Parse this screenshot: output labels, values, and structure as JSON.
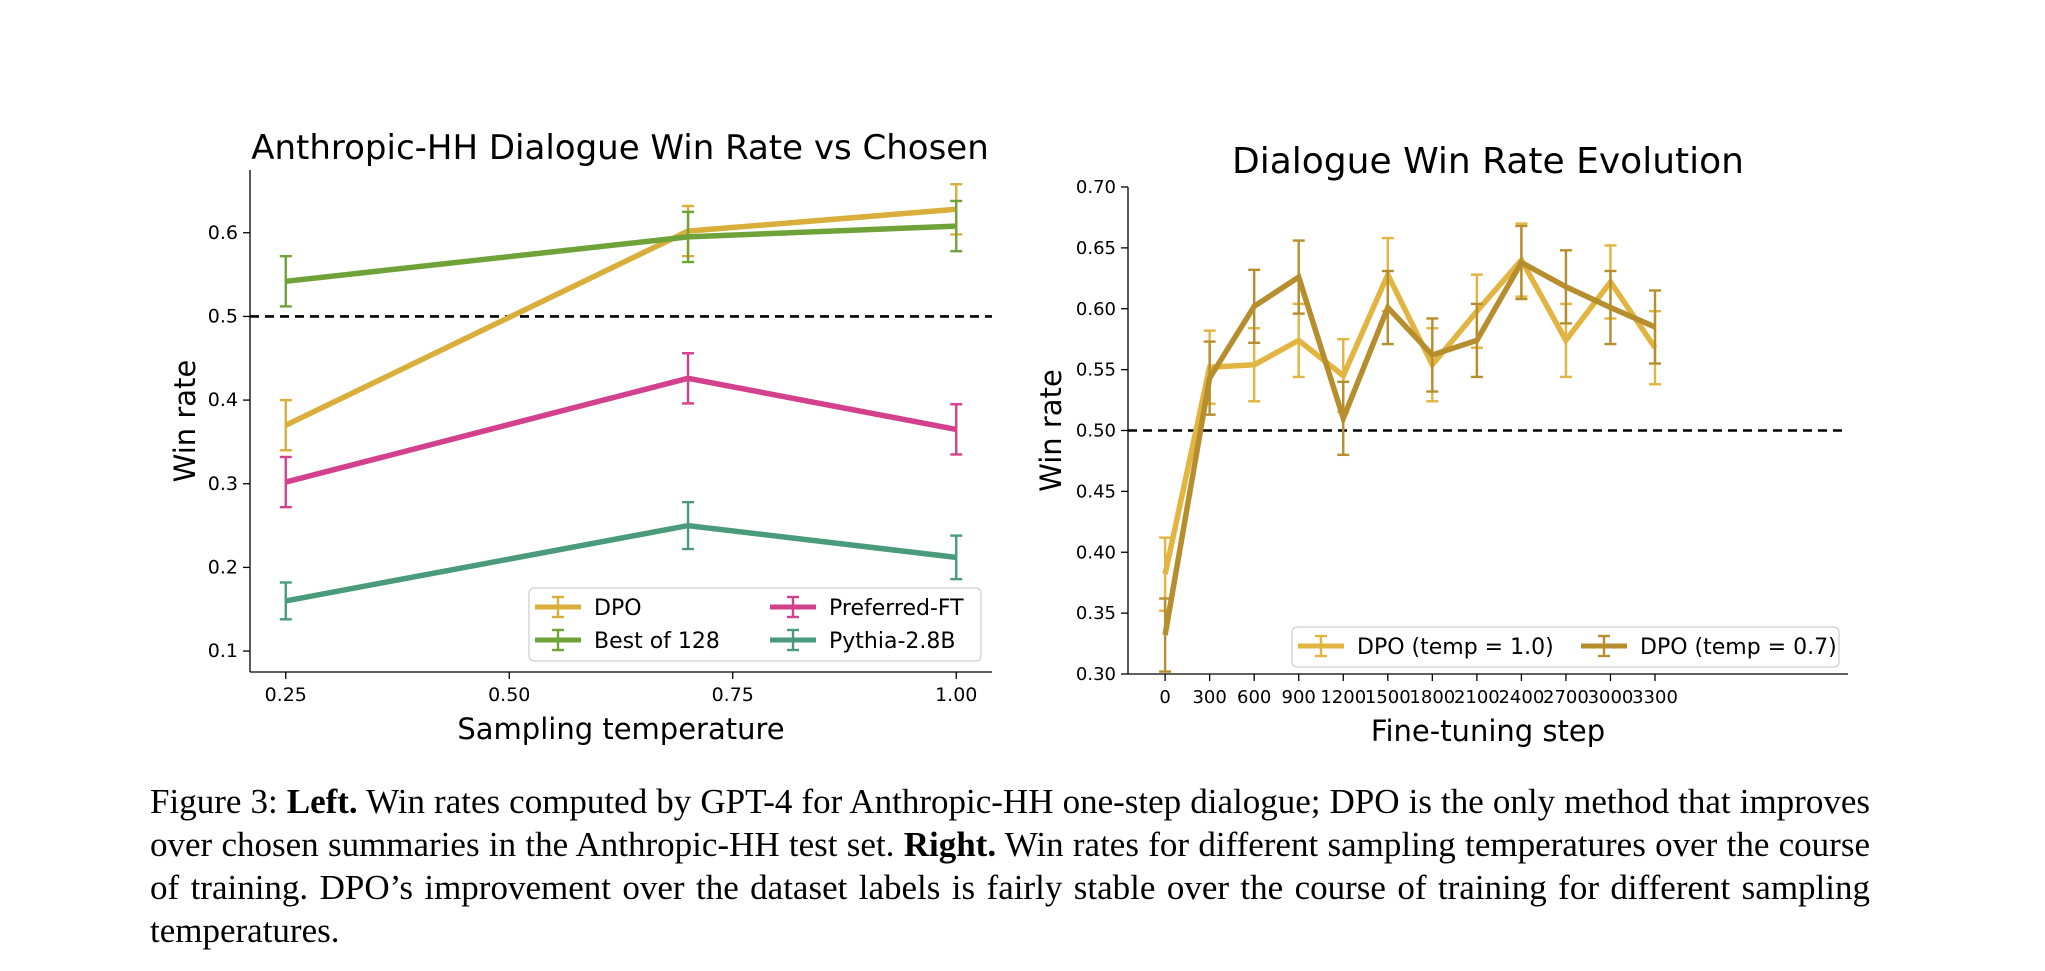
{
  "chart_data": [
    {
      "type": "line",
      "title": "Anthropic-HH Dialogue Win Rate vs Chosen",
      "xlabel": "Sampling temperature",
      "ylabel": "Win rate",
      "xlim": [
        0.21,
        1.04
      ],
      "ylim": [
        0.075,
        0.675
      ],
      "xticks": [
        0.25,
        0.5,
        0.75,
        1.0
      ],
      "xtick_labels": [
        "0.25",
        "0.50",
        "0.75",
        "1.00"
      ],
      "yticks": [
        0.1,
        0.2,
        0.3,
        0.4,
        0.5,
        0.6
      ],
      "ytick_labels": [
        "0.1",
        "0.2",
        "0.3",
        "0.4",
        "0.5",
        "0.6"
      ],
      "reference_line": 0.5,
      "legend_position": "lower-right",
      "legend_columns": 2,
      "grid": false,
      "series": [
        {
          "name": "DPO",
          "color": "#d9ae3b",
          "x": [
            0.25,
            0.7,
            1.0
          ],
          "y": [
            0.37,
            0.602,
            0.628
          ],
          "err": [
            0.03,
            0.03,
            0.03
          ]
        },
        {
          "name": "Best of 128",
          "color": "#6fa33a",
          "x": [
            0.25,
            0.7,
            1.0
          ],
          "y": [
            0.542,
            0.595,
            0.608
          ],
          "err": [
            0.03,
            0.03,
            0.03
          ]
        },
        {
          "name": "Preferred-FT",
          "color": "#d3418c",
          "x": [
            0.25,
            0.7,
            1.0
          ],
          "y": [
            0.302,
            0.426,
            0.365
          ],
          "err": [
            0.03,
            0.03,
            0.03
          ]
        },
        {
          "name": "Pythia-2.8B",
          "color": "#4a9a7c",
          "x": [
            0.25,
            0.7,
            1.0
          ],
          "y": [
            0.16,
            0.25,
            0.212
          ],
          "err": [
            0.022,
            0.028,
            0.026
          ]
        }
      ]
    },
    {
      "type": "line",
      "title": "Dialogue Win Rate Evolution",
      "xlabel": "Fine-tuning step",
      "ylabel": "Win rate",
      "xlim": [
        -250,
        4600
      ],
      "ylim": [
        0.3,
        0.7
      ],
      "xticks": [
        0,
        300,
        600,
        900,
        1200,
        1500,
        1800,
        2100,
        2400,
        2700,
        3000,
        3300
      ],
      "xtick_labels": [
        "0",
        "300",
        "600",
        "900",
        "1200",
        "1500",
        "1800",
        "2100",
        "2400",
        "2700",
        "3000",
        "3300"
      ],
      "yticks": [
        0.3,
        0.35,
        0.4,
        0.45,
        0.5,
        0.55,
        0.6,
        0.65,
        0.7
      ],
      "ytick_labels": [
        "0.30",
        "0.35",
        "0.40",
        "0.45",
        "0.50",
        "0.55",
        "0.60",
        "0.65",
        "0.70"
      ],
      "reference_line": 0.5,
      "legend_position": "lower-right",
      "legend_columns": 2,
      "grid": false,
      "series": [
        {
          "name": "DPO (temp = 1.0)",
          "color": "#e2b440",
          "x": [
            0,
            300,
            600,
            900,
            1200,
            1500,
            1800,
            2100,
            2400,
            2700,
            3000,
            3300
          ],
          "y": [
            0.382,
            0.552,
            0.554,
            0.574,
            0.545,
            0.628,
            0.554,
            0.598,
            0.64,
            0.574,
            0.622,
            0.568
          ],
          "err": [
            0.03,
            0.03,
            0.03,
            0.03,
            0.03,
            0.03,
            0.03,
            0.03,
            0.03,
            0.03,
            0.03,
            0.03
          ]
        },
        {
          "name": "DPO (temp = 0.7)",
          "color": "#b68e2e",
          "x": [
            0,
            300,
            600,
            900,
            1200,
            1500,
            1800,
            2100,
            2400,
            2700,
            3000,
            3300
          ],
          "y": [
            0.332,
            0.543,
            0.602,
            0.626,
            0.51,
            0.601,
            0.562,
            0.574,
            0.638,
            0.618,
            0.601,
            0.585
          ],
          "err": [
            0.03,
            0.03,
            0.03,
            0.03,
            0.03,
            0.03,
            0.03,
            0.03,
            0.03,
            0.03,
            0.03,
            0.03
          ]
        }
      ]
    }
  ],
  "caption": {
    "figure_label": "Figure 3: ",
    "left_label": "Left.",
    "left_text": " Win rates computed by GPT-4 for Anthropic-HH one-step dialogue; DPO is the only method that improves over chosen summaries in the Anthropic-HH test set. ",
    "right_label": "Right.",
    "right_text": " Win rates for different sampling temperatures over the course of training. DPO’s improvement over the dataset labels is fairly stable over the course of training for different sampling temperatures."
  }
}
